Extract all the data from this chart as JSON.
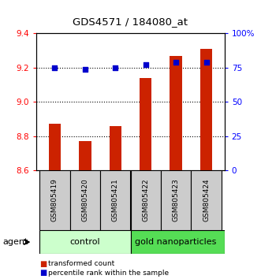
{
  "title": "GDS4571 / 184080_at",
  "samples": [
    "GSM805419",
    "GSM805420",
    "GSM805421",
    "GSM805422",
    "GSM805423",
    "GSM805424"
  ],
  "red_values": [
    8.87,
    8.77,
    8.86,
    9.14,
    9.27,
    9.31
  ],
  "blue_values": [
    9.2,
    9.19,
    9.2,
    9.22,
    9.23,
    9.23
  ],
  "ylim_left": [
    8.6,
    9.4
  ],
  "ylim_right": [
    0,
    100
  ],
  "yticks_left": [
    8.6,
    8.8,
    9.0,
    9.2,
    9.4
  ],
  "yticks_right": [
    0,
    25,
    50,
    75,
    100
  ],
  "ytick_labels_right": [
    "0",
    "25",
    "50",
    "75",
    "100%"
  ],
  "bar_color": "#cc2200",
  "dot_color": "#0000cc",
  "group_colors_ctrl": "#ccffcc",
  "group_colors_gold": "#55dd55",
  "agent_label": "agent",
  "legend_red": "transformed count",
  "legend_blue": "percentile rank within the sample",
  "bar_width": 0.4,
  "x_positions": [
    0,
    1,
    2,
    3,
    4,
    5
  ],
  "grid_yticks": [
    8.8,
    9.0,
    9.2
  ]
}
